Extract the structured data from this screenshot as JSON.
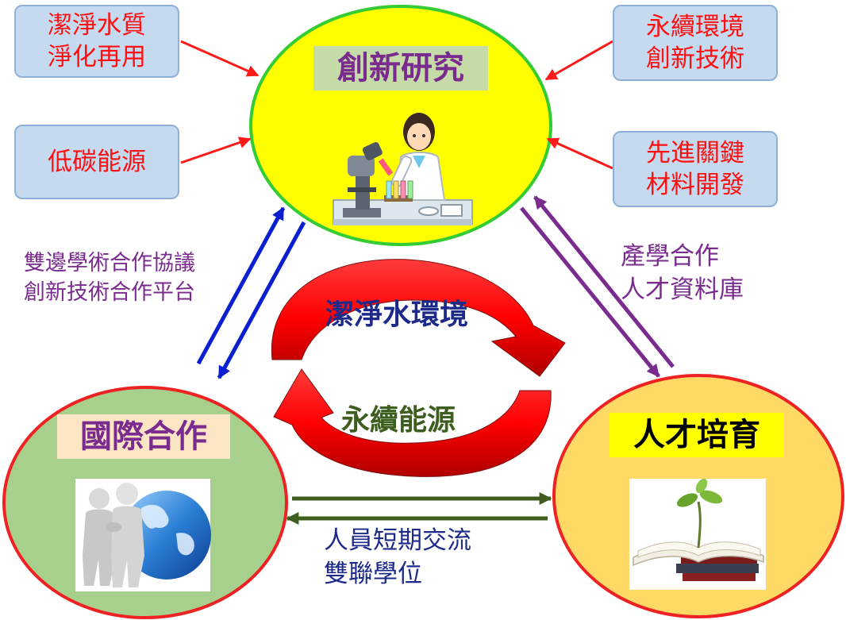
{
  "center": {
    "title": "創新研究"
  },
  "left": {
    "title": "國際合作"
  },
  "right": {
    "title": "人才培育"
  },
  "boxes": {
    "top_left": [
      "潔淨水質",
      "淨化再用"
    ],
    "mid_left": [
      "低碳能源"
    ],
    "top_right": [
      "永續環境",
      "創新技術"
    ],
    "mid_right": [
      "先進關鍵",
      "材料開發"
    ]
  },
  "links": {
    "left_upper": [
      "雙邊學術合作協議",
      "創新技術合作平台"
    ],
    "right_upper": [
      "產學合作",
      "人才資料庫"
    ],
    "bottom": [
      "人員短期交流",
      "雙聯學位"
    ]
  },
  "cycle": {
    "top": "潔淨水環境",
    "bottom": "永續能源"
  },
  "colors": {
    "center_fill": "#ffff00",
    "center_ring": "#33cc33",
    "left_fill": "#a8d08d",
    "right_fill": "#ffd966",
    "outer_ring": "#ee2222",
    "box_fill": "#c5d9ef",
    "box_text": "#ff1010",
    "blue_arrow": "#0a1fd0",
    "purple_arrow": "#7a2c8e",
    "green_arrow": "#3d5e1f",
    "cycle_red": "#ff0000"
  },
  "icons": [
    "scientist-microscope-icon",
    "handshake-globe-icon",
    "books-sprout-icon"
  ]
}
